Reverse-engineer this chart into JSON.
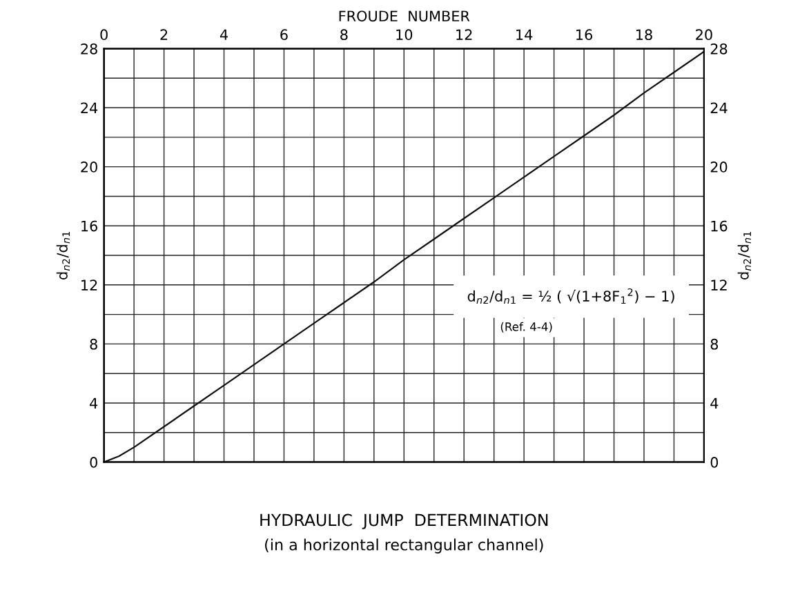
{
  "chart_data": {
    "type": "line",
    "title": "HYDRAULIC  JUMP  DETERMINATION",
    "subtitle": "(in a horizontal rectangular channel)",
    "xlabel": "FROUDE  NUMBER",
    "ylabel": "d$_{n2}$/d$_{n1}$",
    "y2label": "d$_{n2}$/d$_{n1}$",
    "annotations": [
      "d$_{n2}$/d$_{n1}$ = ½ ( √(1+8F$_{1}$$^{2}$) − 1)",
      "(Ref. 4-4)"
    ],
    "x": [
      0,
      0.5,
      1,
      2,
      3,
      4,
      5,
      6,
      7,
      8,
      9,
      10,
      11,
      12,
      13,
      14,
      15,
      16,
      17,
      18,
      19,
      20
    ],
    "series": [
      {
        "color": "#111111",
        "values": [
          0,
          0.4,
          1.0,
          2.4,
          3.8,
          5.2,
          6.6,
          8.0,
          9.4,
          10.8,
          12.2,
          13.7,
          15.1,
          16.5,
          17.9,
          19.3,
          20.7,
          22.1,
          23.5,
          25.0,
          26.4,
          27.8
        ]
      }
    ],
    "xlim": [
      0,
      20
    ],
    "xticks": [
      0,
      {
        "value": 1,
        "label": null
      },
      2,
      {
        "value": 3,
        "label": null
      },
      4,
      {
        "value": 5,
        "label": null
      },
      6,
      {
        "value": 7,
        "label": null
      },
      8,
      {
        "value": 9,
        "label": null
      },
      10,
      {
        "value": 11,
        "label": null
      },
      12,
      {
        "value": 13,
        "label": null
      },
      14,
      {
        "value": 15,
        "label": null
      },
      16,
      {
        "value": 17,
        "label": null
      },
      18,
      {
        "value": 19,
        "label": null
      },
      20
    ],
    "ylim": [
      0,
      28
    ],
    "yticks": [
      0,
      {
        "value": 2,
        "label": null
      },
      4,
      {
        "value": 6,
        "label": null
      },
      8,
      {
        "value": 10,
        "label": null
      },
      12,
      {
        "value": 14,
        "label": null
      },
      16,
      {
        "value": 18,
        "label": null
      },
      20,
      {
        "value": 22,
        "label": null
      },
      24,
      {
        "value": 26,
        "label": null
      },
      28
    ],
    "y2lim": [
      0,
      28
    ],
    "y2ticks": [
      0,
      {
        "value": 2,
        "label": null
      },
      4,
      {
        "value": 6,
        "label": null
      },
      8,
      {
        "value": 10,
        "label": null
      },
      12,
      {
        "value": 14,
        "label": null
      },
      16,
      {
        "value": 18,
        "label": null
      },
      20,
      {
        "value": 22,
        "label": null
      },
      24,
      {
        "value": 26,
        "label": null
      },
      28
    ],
    "grid": true,
    "legend": false,
    "marker": "none",
    "line_style": "solid"
  }
}
